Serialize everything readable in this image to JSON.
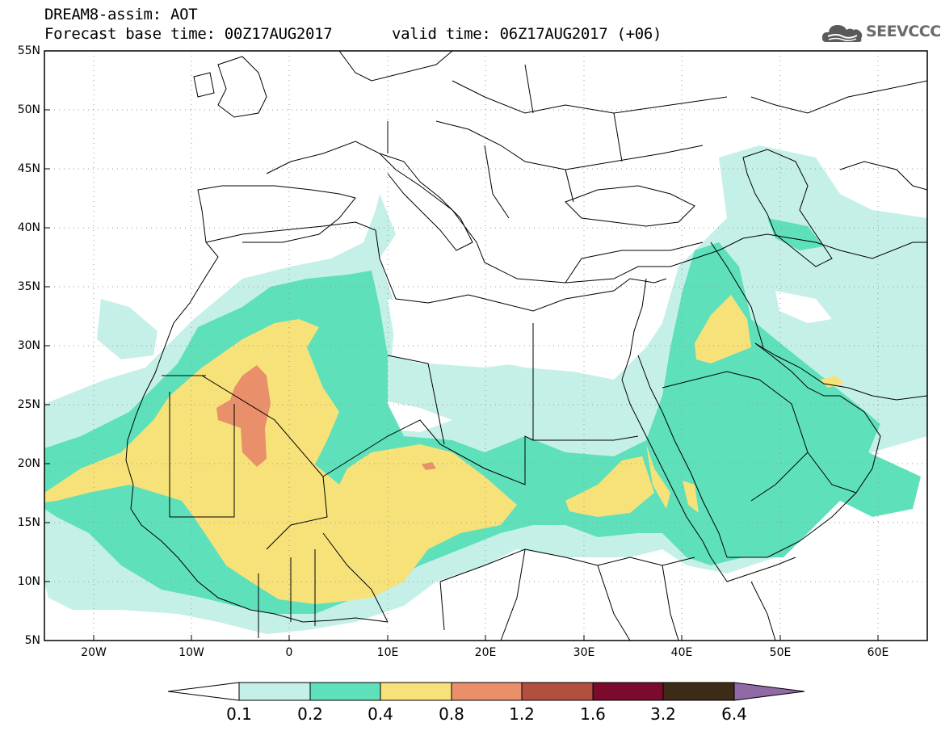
{
  "header": {
    "title": "DREAM8-assim: AOT",
    "base_time": "Forecast base time: 00Z17AUG2017",
    "valid_time": "valid time: 06Z17AUG2017 (+06)"
  },
  "logo": {
    "text": "SEEVCCC",
    "icon": "cloud-icon"
  },
  "map": {
    "projection": "equirectangular",
    "lon_range": [
      -25,
      65
    ],
    "lat_range": [
      5,
      55
    ],
    "lat_ticks": [
      "5N",
      "10N",
      "15N",
      "20N",
      "25N",
      "30N",
      "35N",
      "40N",
      "45N",
      "50N",
      "55N"
    ],
    "lon_ticks": [
      "20W",
      "10W",
      "0",
      "10E",
      "20E",
      "30E",
      "40E",
      "50E",
      "60E"
    ],
    "grid": "dotted"
  },
  "colorbar": {
    "levels": [
      "0.1",
      "0.2",
      "0.4",
      "0.8",
      "1.2",
      "1.6",
      "3.2",
      "6.4"
    ],
    "colors": [
      "#c5f0e8",
      "#5ee0bb",
      "#f7e27a",
      "#e9906a",
      "#b24f3e",
      "#7b0a2c",
      "#3d2a17",
      "#8f6aa4"
    ],
    "under_color": "#ffffff"
  }
}
